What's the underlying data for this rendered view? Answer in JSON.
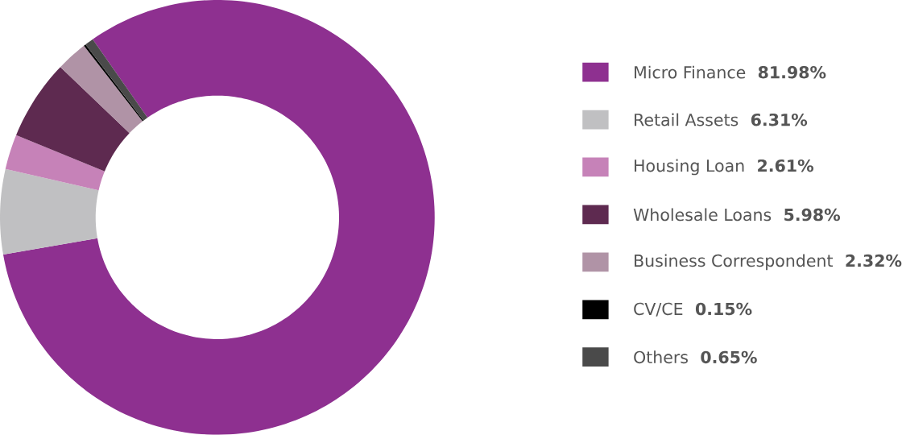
{
  "chart_data": {
    "type": "donut",
    "categories": [
      "Micro Finance",
      "Retail Assets",
      "Housing Loan",
      "Wholesale Loans",
      "Business Correspondent",
      "CV/CE",
      "Others"
    ],
    "values": [
      81.98,
      6.31,
      2.61,
      5.98,
      2.32,
      0.15,
      0.65
    ],
    "value_labels": [
      "81.98%",
      "6.31%",
      "2.61%",
      "5.98%",
      "2.32%",
      "0.15%",
      "0.65%"
    ],
    "colors": [
      "#8e3090",
      "#c0c0c2",
      "#c682b8",
      "#5e2a50",
      "#b093a6",
      "#000000",
      "#4a4a4a"
    ],
    "legend": "right"
  }
}
